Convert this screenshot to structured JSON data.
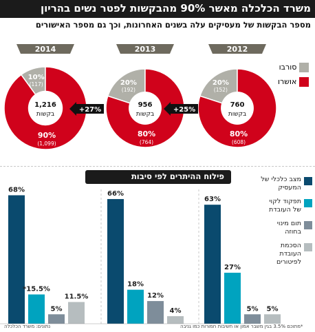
{
  "header": {
    "title": "משרד הכלכלה מאשר 90% מהבקשות לפטר נשים בהריון",
    "subtitle": "מספר הבקשות של מעסיקים עלה בשנים האחרונות, וכך גם מספר האישורים"
  },
  "pie_legend": [
    {
      "label": "סורבו",
      "color": "#b0b0a8"
    },
    {
      "label": "אושרו",
      "color": "#d0021b"
    }
  ],
  "bar_section_title": "פילוח ההיתרים לפי סיבות",
  "bar_legend": [
    {
      "label": "מצב כלכלי של המעסיק",
      "color": "#0a4a6e"
    },
    {
      "label": "תפקוד לקוי של העובדת",
      "color": "#00a3bf"
    },
    {
      "label": "תום מינוי בחוזה",
      "color": "#7e8d9a"
    },
    {
      "label": "הסכמת העובדת לפיטורים",
      "color": "#b6bdbf"
    }
  ],
  "footnotes": {
    "source": "נתונים: משרד הכלכלה",
    "note": "*מתוכם 3.5% בגין משבר אמון או חשיבות חמורות כמו גניבה"
  },
  "chart_data": [
    {
      "type": "pie",
      "title": "2014-2012",
      "pies": [
        {
          "year": "2012",
          "total": "760",
          "total_label": "בקשות",
          "slices": [
            {
              "name": "אושרו",
              "percent": 80,
              "percent_label": "80%",
              "count_label": "(608)"
            },
            {
              "name": "סורבו",
              "percent": 20,
              "percent_label": "20%",
              "count_label": "(152)"
            }
          ]
        },
        {
          "year": "2013",
          "total": "956",
          "total_label": "בקשות",
          "slices": [
            {
              "name": "אושרו",
              "percent": 80,
              "percent_label": "80%",
              "count_label": "(764)"
            },
            {
              "name": "סורבו",
              "percent": 20,
              "percent_label": "20%",
              "count_label": "(192)"
            }
          ]
        },
        {
          "year": "2014",
          "total": "1,216",
          "total_label": "בקשות",
          "slices": [
            {
              "name": "אושרו",
              "percent": 90,
              "percent_label": "90%",
              "count_label": "(1,099)"
            },
            {
              "name": "סורבו",
              "percent": 10,
              "percent_label": "10%",
              "count_label": "(117)"
            }
          ]
        }
      ],
      "growth_arrows": [
        "+25%",
        "+27%"
      ]
    },
    {
      "type": "bar",
      "categories": [
        "מצב כלכלי של המעסיק",
        "תפקוד לקוי של העובדת",
        "תום מינוי בחוזה",
        "הסכמת העובדת לפיטורים"
      ],
      "groups": [
        {
          "year": "2012",
          "values": [
            63,
            27,
            5,
            5
          ],
          "labels": [
            "63%",
            "27%",
            "5%",
            "5%"
          ]
        },
        {
          "year": "2013",
          "values": [
            66,
            18,
            12,
            4
          ],
          "labels": [
            "66%",
            "18%",
            "12%",
            "4%"
          ]
        },
        {
          "year": "2014",
          "values": [
            68,
            15.5,
            5,
            11.5
          ],
          "labels": [
            "68%",
            "*15.5%",
            "5%",
            "11.5%"
          ]
        }
      ],
      "ylim": [
        0,
        70
      ]
    }
  ]
}
